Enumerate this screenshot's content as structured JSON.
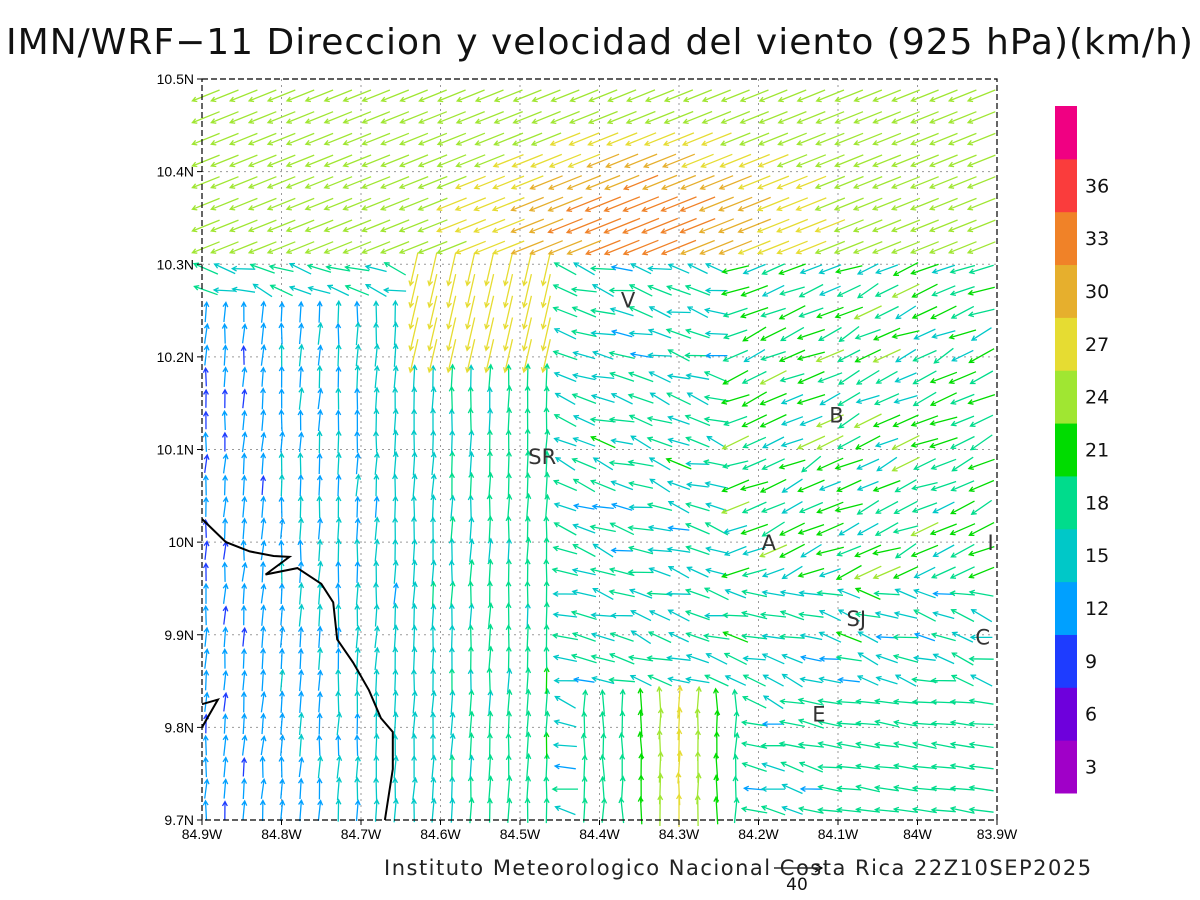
{
  "title": "IMN/WRF−11 Direccion y velocidad del viento (925 hPa)(km/h)",
  "credit": "Instituto Meteorologico Nacional Costa Rica 22Z10SEP2025",
  "reference_vector": {
    "value": "40",
    "speed": 40
  },
  "axes": {
    "xlim": [
      -84.9,
      -83.9
    ],
    "ylim": [
      9.7,
      10.5
    ],
    "x_ticks": [
      {
        "value": -84.9,
        "label": "84.9W"
      },
      {
        "value": -84.8,
        "label": "84.8W"
      },
      {
        "value": -84.7,
        "label": "84.7W"
      },
      {
        "value": -84.6,
        "label": "84.6W"
      },
      {
        "value": -84.5,
        "label": "84.5W"
      },
      {
        "value": -84.4,
        "label": "84.4W"
      },
      {
        "value": -84.3,
        "label": "84.3W"
      },
      {
        "value": -84.2,
        "label": "84.2W"
      },
      {
        "value": -84.1,
        "label": "84.1W"
      },
      {
        "value": -84.0,
        "label": "84W"
      },
      {
        "value": -83.9,
        "label": "83.9W"
      }
    ],
    "y_ticks": [
      {
        "value": 9.7,
        "label": "9.7N"
      },
      {
        "value": 9.8,
        "label": "9.8N"
      },
      {
        "value": 9.9,
        "label": "9.9N"
      },
      {
        "value": 10.0,
        "label": "10N"
      },
      {
        "value": 10.1,
        "label": "10.1N"
      },
      {
        "value": 10.2,
        "label": "10.2N"
      },
      {
        "value": 10.3,
        "label": "10.3N"
      },
      {
        "value": 10.4,
        "label": "10.4N"
      },
      {
        "value": 10.5,
        "label": "10.5N"
      }
    ],
    "grid": true
  },
  "places": [
    {
      "label": "V",
      "lon": -84.364,
      "lat": 10.262
    },
    {
      "label": "SR",
      "lon": -84.472,
      "lat": 10.093
    },
    {
      "label": "B",
      "lon": -84.102,
      "lat": 10.138
    },
    {
      "label": "A",
      "lon": -84.187,
      "lat": 10.0
    },
    {
      "label": "I",
      "lon": -83.908,
      "lat": 10.0
    },
    {
      "label": "SJ",
      "lon": -84.077,
      "lat": 9.918
    },
    {
      "label": "C",
      "lon": -83.918,
      "lat": 9.898
    },
    {
      "label": "E",
      "lon": -84.124,
      "lat": 9.815
    }
  ],
  "legend": {
    "unit": "km/h",
    "labels": [
      "3",
      "6",
      "9",
      "12",
      "15",
      "18",
      "21",
      "24",
      "27",
      "30",
      "33",
      "36"
    ],
    "bins": [
      {
        "color": "#a000c8",
        "max": 3
      },
      {
        "color": "#6e00dc",
        "max": 6
      },
      {
        "color": "#1e3cff",
        "max": 9
      },
      {
        "color": "#00a0ff",
        "max": 12
      },
      {
        "color": "#00c8c8",
        "max": 15
      },
      {
        "color": "#00dc8c",
        "max": 18
      },
      {
        "color": "#00dc00",
        "max": 21
      },
      {
        "color": "#a0e632",
        "max": 24
      },
      {
        "color": "#e6dc32",
        "max": 27
      },
      {
        "color": "#e6af2d",
        "max": 30
      },
      {
        "color": "#f08228",
        "max": 33
      },
      {
        "color": "#fa3c3c",
        "max": 36
      },
      {
        "color": "#f00082",
        "max": 40
      }
    ]
  },
  "coastline": [
    [
      -84.9,
      10.025
    ],
    [
      -84.87,
      10.0
    ],
    [
      -84.84,
      9.99
    ],
    [
      -84.81,
      9.985
    ],
    [
      -84.79,
      9.984
    ],
    [
      -84.82,
      9.965
    ],
    [
      -84.78,
      9.972
    ],
    [
      -84.75,
      9.955
    ],
    [
      -84.735,
      9.935
    ],
    [
      -84.73,
      9.895
    ],
    [
      -84.71,
      9.87
    ],
    [
      -84.69,
      9.84
    ],
    [
      -84.675,
      9.81
    ],
    [
      -84.66,
      9.795
    ],
    [
      -84.66,
      9.755
    ],
    [
      -84.67,
      9.7
    ]
  ],
  "coastline_island": [
    [
      -84.9,
      9.825
    ],
    [
      -84.88,
      9.83
    ],
    [
      -84.9,
      9.8
    ]
  ]
}
